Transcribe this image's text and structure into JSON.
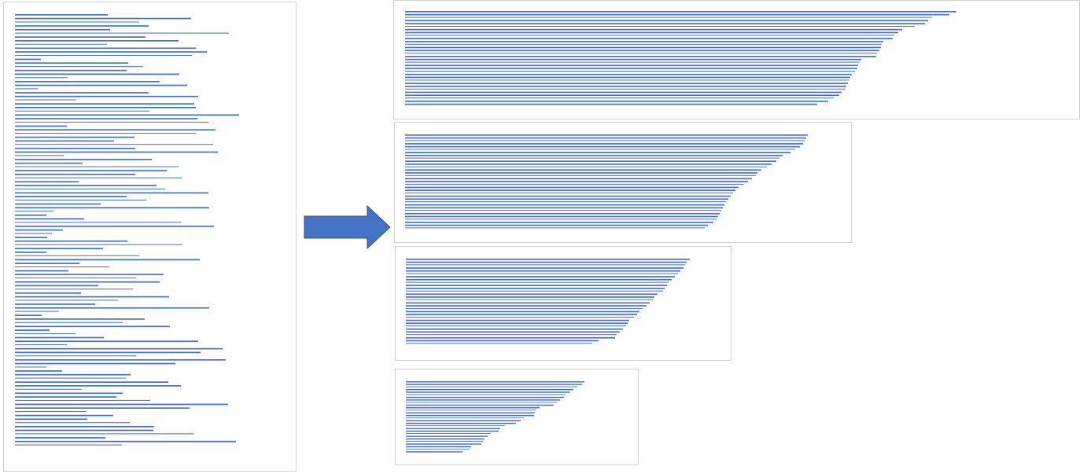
{
  "colors": {
    "bar": "#4472c4",
    "arrow": "#4472c4",
    "arrow_edge": "#2f528f",
    "panel_border": "#d0d0d0"
  },
  "unsorted": {
    "values": [
      118,
      224,
      158,
      170,
      121,
      272,
      166,
      208,
      117,
      230,
      244,
      225,
      33,
      144,
      163,
      142,
      209,
      67,
      184,
      219,
      29,
      170,
      233,
      78,
      228,
      230,
      171,
      285,
      232,
      246,
      66,
      255,
      230,
      152,
      126,
      252,
      153,
      258,
      62,
      174,
      86,
      208,
      193,
      153,
      212,
      81,
      180,
      191,
      246,
      142,
      167,
      109,
      247,
      49,
      40,
      88,
      211,
      253,
      61,
      47,
      41,
      143,
      213,
      112,
      40,
      158,
      235,
      82,
      120,
      68,
      189,
      154,
      184,
      106,
      150,
      84,
      196,
      131,
      102,
      247,
      56,
      34,
      165,
      137,
      197,
      44,
      77,
      113,
      233,
      66,
      264,
      236,
      154,
      268,
      204,
      40,
      60,
      147,
      141,
      195,
      211,
      85,
      137,
      129,
      172,
      271,
      222,
      90,
      125,
      92,
      146,
      177,
      176,
      228,
      115,
      281,
      136
    ],
    "max": 300
  },
  "groups": [
    {
      "values": [
        701,
        692,
        670,
        665,
        661,
        648,
        632,
        627,
        622,
        620,
        608,
        606,
        605,
        603,
        600,
        599,
        580,
        578,
        576,
        575,
        572,
        568,
        566,
        565,
        563,
        561,
        560,
        555,
        552,
        545,
        538,
        524
      ],
      "max": 720
    },
    {
      "values": [
        512,
        510,
        508,
        506,
        502,
        496,
        490,
        480,
        476,
        472,
        466,
        460,
        453,
        448,
        446,
        441,
        436,
        430,
        424,
        420,
        417,
        414,
        411,
        408,
        406,
        404,
        402,
        400,
        398,
        396,
        392,
        385,
        381
      ],
      "max": 720
    },
    {
      "values": [
        361,
        357,
        355,
        353,
        349,
        346,
        342,
        338,
        334,
        332,
        329,
        327,
        320,
        316,
        314,
        310,
        306,
        301,
        297,
        294,
        290,
        284,
        282,
        280,
        276,
        272,
        268,
        266,
        245,
        237
      ],
      "max": 720
    },
    {
      "values": [
        227,
        224,
        218,
        213,
        209,
        203,
        201,
        196,
        192,
        188,
        170,
        166,
        164,
        163,
        150,
        146,
        140,
        126,
        120,
        118,
        108,
        104,
        100,
        98,
        96,
        83,
        81,
        72
      ],
      "max": 720
    }
  ]
}
